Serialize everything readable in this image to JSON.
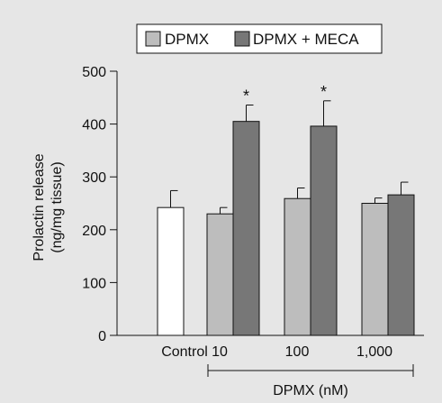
{
  "colors": {
    "background": "#e6e6e6",
    "legend_bg": "#ffffff",
    "control": "#ffffff",
    "dpmx": "#bdbdbd",
    "dpmx_meca": "#777777",
    "stroke": "#111111"
  },
  "chart_data": {
    "type": "bar",
    "ylabel_lines": [
      "Prolactin release",
      "(ng/mg tissue)"
    ],
    "ylim": [
      0,
      500
    ],
    "yticks": [
      0,
      100,
      200,
      300,
      400,
      500
    ],
    "categories": [
      "Control",
      "10",
      "100",
      "1,000"
    ],
    "group_label": "DPMX (nM)",
    "control": {
      "value": 242,
      "error": 32
    },
    "series": [
      {
        "name": "DPMX",
        "values": [
          null,
          230,
          259,
          250
        ],
        "errors": [
          null,
          12,
          20,
          10
        ]
      },
      {
        "name": "DPMX + MECA",
        "values": [
          null,
          405,
          396,
          266
        ],
        "errors": [
          null,
          31,
          48,
          24
        ]
      }
    ],
    "significance": [
      {
        "category": "10",
        "series": "DPMX + MECA",
        "mark": "*"
      },
      {
        "category": "100",
        "series": "DPMX + MECA",
        "mark": "*"
      }
    ],
    "legend_position": "top"
  }
}
